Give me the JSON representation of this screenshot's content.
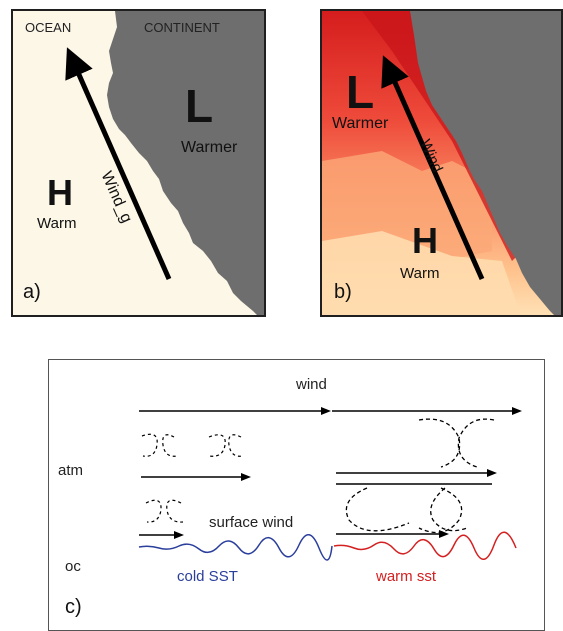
{
  "panel_a": {
    "ocean_label": "OCEAN",
    "continent_label": "CONTINENT",
    "low_label": "L",
    "low_temp": "Warmer",
    "high_label": "H",
    "high_temp": "Warm",
    "arrow_label": "Wind_g",
    "panel_tag": "a)"
  },
  "panel_b": {
    "low_label": "L",
    "low_temp": "Warmer",
    "high_label": "H",
    "high_temp": "Warm",
    "arrow_label": "Wind",
    "panel_tag": "b)"
  },
  "panel_c": {
    "wind_label": "wind",
    "atm_label": "atm",
    "surface_wind_label": "surface wind",
    "oc_label": "oc",
    "cold_label": "cold SST",
    "warm_label": "warm sst",
    "panel_tag": "c)"
  },
  "colors": {
    "land": "#6e6e6e",
    "ocean_a": "#fdf7e8",
    "cold_line": "#2a3e9c",
    "warm_line": "#d42020",
    "arrow": "#000000"
  }
}
